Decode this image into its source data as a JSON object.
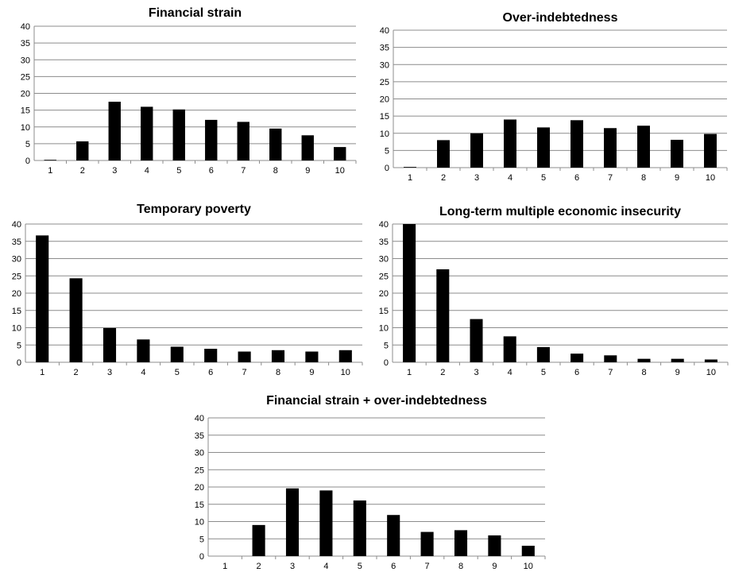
{
  "chart_data": [
    {
      "type": "bar",
      "title": "Financial strain",
      "categories": [
        "1",
        "2",
        "3",
        "4",
        "5",
        "6",
        "7",
        "8",
        "9",
        "10"
      ],
      "values": [
        0.2,
        5.7,
        17.5,
        16,
        15.2,
        12.1,
        11.5,
        9.5,
        7.5,
        4
      ],
      "yticks": [
        "0",
        "5",
        "10",
        "15",
        "20",
        "25",
        "30",
        "35",
        "40"
      ],
      "ylim": [
        0,
        40
      ],
      "grid": true,
      "color": "#000000"
    },
    {
      "type": "bar",
      "title": "Over-indebtedness",
      "categories": [
        "1",
        "2",
        "3",
        "4",
        "5",
        "6",
        "7",
        "8",
        "9",
        "10"
      ],
      "values": [
        0.2,
        8,
        10,
        14,
        11.7,
        13.8,
        11.5,
        12.2,
        8.1,
        9.8
      ],
      "yticks": [
        "0",
        "5",
        "10",
        "15",
        "20",
        "25",
        "30",
        "35",
        "40"
      ],
      "ylim": [
        0,
        40
      ],
      "grid": true,
      "color": "#000000"
    },
    {
      "type": "bar",
      "title": "Temporary poverty",
      "categories": [
        "1",
        "2",
        "3",
        "4",
        "5",
        "6",
        "7",
        "8",
        "9",
        "10"
      ],
      "values": [
        36.7,
        24.3,
        9.9,
        6.6,
        4.5,
        3.9,
        3.1,
        3.5,
        3.1,
        3.5
      ],
      "yticks": [
        "0",
        "5",
        "10",
        "15",
        "20",
        "25",
        "30",
        "35",
        "40"
      ],
      "ylim": [
        0,
        40
      ],
      "grid": true,
      "color": "#000000"
    },
    {
      "type": "bar",
      "title": "Long-term multiple economic insecurity",
      "categories": [
        "1",
        "2",
        "3",
        "4",
        "5",
        "6",
        "7",
        "8",
        "9",
        "10"
      ],
      "values": [
        40,
        26.9,
        12.5,
        7.5,
        4.4,
        2.5,
        2,
        1,
        1,
        0.8
      ],
      "yticks": [
        "0",
        "5",
        "10",
        "15",
        "20",
        "25",
        "30",
        "35",
        "40"
      ],
      "ylim": [
        0,
        40
      ],
      "grid": true,
      "color": "#000000"
    },
    {
      "type": "bar",
      "title": "Financial strain + over-indebtedness",
      "categories": [
        "1",
        "2",
        "3",
        "4",
        "5",
        "6",
        "7",
        "8",
        "9",
        "10"
      ],
      "values": [
        0,
        9,
        19.6,
        19,
        16.1,
        11.9,
        7,
        7.5,
        6,
        3
      ],
      "yticks": [
        "0",
        "5",
        "10",
        "15",
        "20",
        "25",
        "30",
        "35",
        "40"
      ],
      "ylim": [
        0,
        40
      ],
      "grid": true,
      "color": "#000000"
    }
  ]
}
